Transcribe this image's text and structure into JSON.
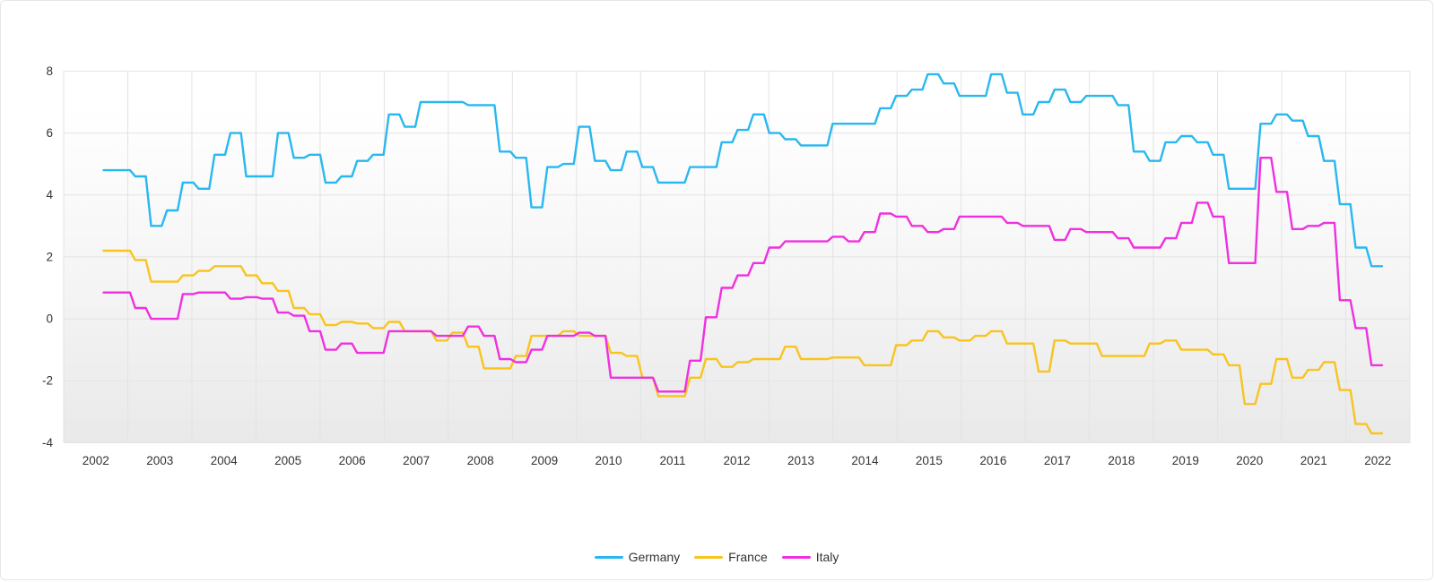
{
  "chart_data": {
    "type": "line",
    "title": "",
    "x_tick_labels": [
      "2002",
      "2003",
      "2004",
      "2005",
      "2006",
      "2007",
      "2008",
      "2009",
      "2010",
      "2011",
      "2012",
      "2013",
      "2014",
      "2015",
      "2016",
      "2017",
      "2018",
      "2019",
      "2020",
      "2021",
      "2022"
    ],
    "y_ticks": [
      8,
      6,
      4,
      2,
      0,
      -2,
      -4
    ],
    "ylim": [
      -4,
      8
    ],
    "grid": true,
    "legend_position": "bottom-center",
    "series": [
      {
        "name": "Germany",
        "color": "#28b8f0",
        "values": [
          4.8,
          4.8,
          4.6,
          3.0,
          3.5,
          4.4,
          4.2,
          5.3,
          6.0,
          4.6,
          4.6,
          6.0,
          5.2,
          5.3,
          4.4,
          4.6,
          5.1,
          5.3,
          6.6,
          6.2,
          7.0,
          7.0,
          7.0,
          6.9,
          6.9,
          5.4,
          5.2,
          3.6,
          4.9,
          5.0,
          6.2,
          5.1,
          4.8,
          5.4,
          4.9,
          4.4,
          4.4,
          4.9,
          4.9,
          5.7,
          6.1,
          6.6,
          6.0,
          5.8,
          5.6,
          5.6,
          6.3,
          6.3,
          6.3,
          6.8,
          7.2,
          7.4,
          7.9,
          7.6,
          7.2,
          7.2,
          7.9,
          7.3,
          6.6,
          7.0,
          7.4,
          7.0,
          7.2,
          7.2,
          6.9,
          5.4,
          5.1,
          5.7,
          5.9,
          5.7,
          5.3,
          4.2,
          4.2,
          6.3,
          6.6,
          6.4,
          5.9,
          5.1,
          3.7,
          2.3,
          1.7
        ]
      },
      {
        "name": "France",
        "color": "#f8c41f",
        "values": [
          2.2,
          2.2,
          1.9,
          1.2,
          1.2,
          1.4,
          1.55,
          1.7,
          1.7,
          1.4,
          1.15,
          0.9,
          0.35,
          0.15,
          -0.2,
          -0.1,
          -0.15,
          -0.3,
          -0.1,
          -0.4,
          -0.4,
          -0.7,
          -0.45,
          -0.9,
          -1.6,
          -1.6,
          -1.2,
          -0.55,
          -0.55,
          -0.4,
          -0.55,
          -0.55,
          -1.1,
          -1.2,
          -1.9,
          -2.5,
          -2.5,
          -1.9,
          -1.3,
          -1.55,
          -1.4,
          -1.3,
          -1.3,
          -0.9,
          -1.3,
          -1.3,
          -1.25,
          -1.25,
          -1.5,
          -1.5,
          -0.85,
          -0.7,
          -0.4,
          -0.6,
          -0.7,
          -0.55,
          -0.4,
          -0.8,
          -0.8,
          -1.7,
          -0.7,
          -0.8,
          -0.8,
          -1.2,
          -1.2,
          -1.2,
          -0.8,
          -0.7,
          -1.0,
          -1.0,
          -1.15,
          -1.5,
          -2.75,
          -2.1,
          -1.3,
          -1.9,
          -1.65,
          -1.4,
          -2.3,
          -3.4,
          -3.7
        ]
      },
      {
        "name": "Italy",
        "color": "#f030e0",
        "values": [
          0.85,
          0.85,
          0.35,
          0.0,
          0.0,
          0.8,
          0.85,
          0.85,
          0.65,
          0.7,
          0.65,
          0.2,
          0.1,
          -0.4,
          -1.0,
          -0.8,
          -1.1,
          -1.1,
          -0.4,
          -0.4,
          -0.4,
          -0.55,
          -0.55,
          -0.25,
          -0.55,
          -1.3,
          -1.4,
          -1.0,
          -0.55,
          -0.55,
          -0.45,
          -0.55,
          -1.9,
          -1.9,
          -1.9,
          -2.35,
          -2.35,
          -1.35,
          0.05,
          1.0,
          1.4,
          1.8,
          2.3,
          2.5,
          2.5,
          2.5,
          2.65,
          2.5,
          2.8,
          3.4,
          3.3,
          3.0,
          2.8,
          2.9,
          3.3,
          3.3,
          3.3,
          3.1,
          3.0,
          3.0,
          2.55,
          2.9,
          2.8,
          2.8,
          2.6,
          2.3,
          2.3,
          2.6,
          3.1,
          3.75,
          3.3,
          1.8,
          1.8,
          5.2,
          4.1,
          2.9,
          3.0,
          3.1,
          0.6,
          -0.3,
          -1.5
        ]
      }
    ]
  }
}
